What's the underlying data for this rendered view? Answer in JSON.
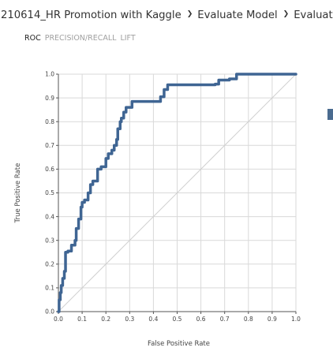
{
  "breadcrumb": {
    "items": [
      "210614_HR Promotion with Kaggle",
      "Evaluate Model",
      "Evaluation results"
    ],
    "separator": "❯"
  },
  "tabs": [
    {
      "label": "ROC",
      "active": true
    },
    {
      "label": "PRECISION/RECALL",
      "active": false
    },
    {
      "label": "LIFT",
      "active": false
    }
  ],
  "colors": {
    "curve": "#3f6593",
    "grid": "#d9d9d9",
    "diagonal": "#d0d0d0",
    "axis": "#555555"
  },
  "chart_data": {
    "type": "line",
    "title": "",
    "xlabel": "False Positive Rate",
    "ylabel": "True Positive Rate",
    "xlim": [
      0,
      1
    ],
    "ylim": [
      0,
      1
    ],
    "grid": true,
    "x_ticks": [
      "0.0",
      "0.1",
      "0.2",
      "0.3",
      "0.4",
      "0.5",
      "0.6",
      "0.7",
      "0.8",
      "0.9",
      "1.0"
    ],
    "y_ticks": [
      "0.0",
      "0.1",
      "0.2",
      "0.3",
      "0.4",
      "0.5",
      "0.6",
      "0.7",
      "0.8",
      "0.9",
      "1.0"
    ],
    "series": [
      {
        "x": [
          0,
          0.003,
          0.003,
          0.008,
          0.008,
          0.012,
          0.012,
          0.018,
          0.018,
          0.025,
          0.025,
          0.03,
          0.03,
          0.04,
          0.04,
          0.055,
          0.055,
          0.07,
          0.07,
          0.075,
          0.075,
          0.085,
          0.085,
          0.095,
          0.095,
          0.1,
          0.1,
          0.11,
          0.11,
          0.125,
          0.125,
          0.135,
          0.135,
          0.145,
          0.145,
          0.165,
          0.165,
          0.18,
          0.18,
          0.2,
          0.2,
          0.21,
          0.21,
          0.225,
          0.225,
          0.235,
          0.235,
          0.245,
          0.245,
          0.25,
          0.25,
          0.26,
          0.26,
          0.265,
          0.265,
          0.275,
          0.275,
          0.285,
          0.285,
          0.31,
          0.31,
          0.43,
          0.43,
          0.445,
          0.445,
          0.46,
          0.46,
          0.66,
          0.66,
          0.675,
          0.675,
          0.72,
          0.72,
          0.75,
          0.75,
          1.0
        ],
        "y": [
          0,
          0,
          0.05,
          0.05,
          0.08,
          0.08,
          0.11,
          0.11,
          0.14,
          0.14,
          0.17,
          0.17,
          0.25,
          0.25,
          0.255,
          0.255,
          0.28,
          0.28,
          0.3,
          0.3,
          0.35,
          0.35,
          0.39,
          0.39,
          0.44,
          0.44,
          0.46,
          0.46,
          0.47,
          0.47,
          0.5,
          0.5,
          0.535,
          0.535,
          0.55,
          0.55,
          0.6,
          0.6,
          0.61,
          0.61,
          0.645,
          0.645,
          0.665,
          0.665,
          0.68,
          0.68,
          0.7,
          0.7,
          0.725,
          0.725,
          0.77,
          0.77,
          0.8,
          0.8,
          0.815,
          0.815,
          0.84,
          0.84,
          0.86,
          0.86,
          0.885,
          0.885,
          0.905,
          0.905,
          0.935,
          0.935,
          0.955,
          0.955,
          0.958,
          0.958,
          0.975,
          0.975,
          0.98,
          0.98,
          1.0,
          1.0
        ]
      }
    ]
  }
}
